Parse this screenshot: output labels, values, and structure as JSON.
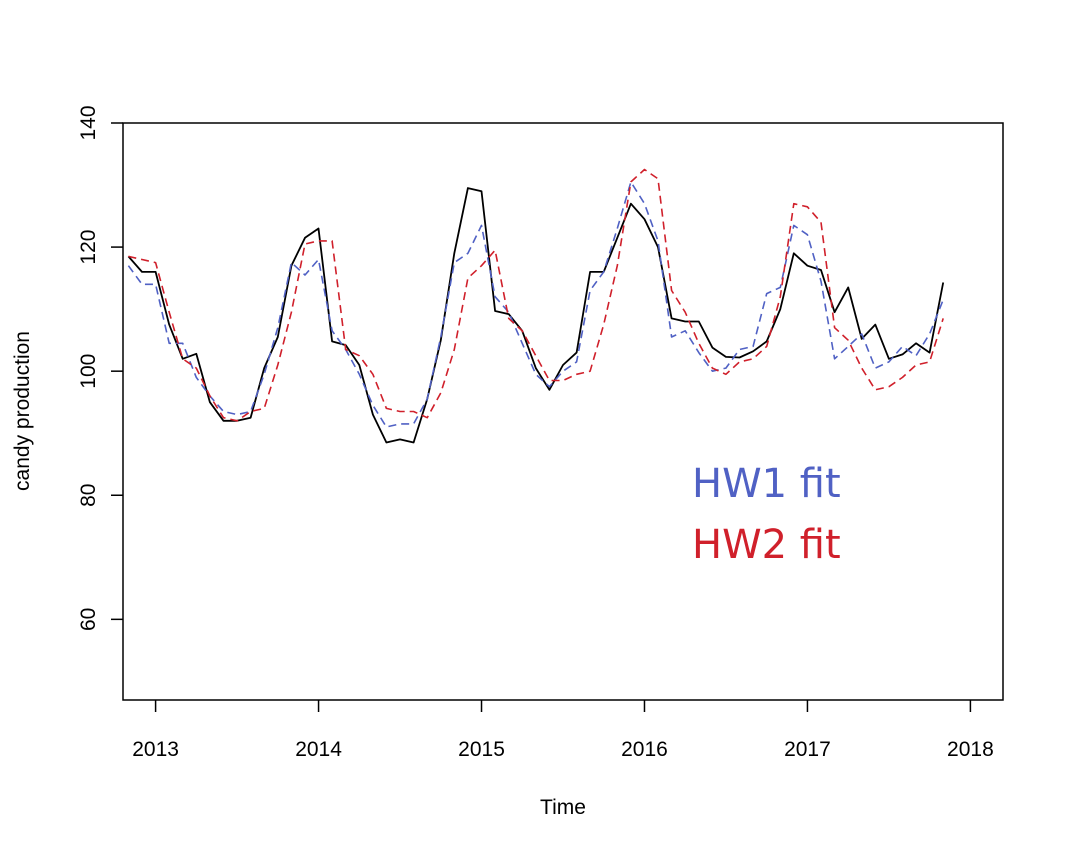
{
  "chart_data": {
    "type": "line",
    "title": "",
    "xlabel": "Time",
    "ylabel": "candy production",
    "xlim": [
      2012.8,
      2018.2
    ],
    "ylim": [
      47,
      140
    ],
    "x_ticks": [
      2013,
      2014,
      2015,
      2016,
      2017,
      2018
    ],
    "y_ticks": [
      60,
      80,
      100,
      120,
      140
    ],
    "grid": false,
    "x_start": 2012.8333,
    "x_step": 0.08333,
    "series": [
      {
        "key": "observed",
        "color": "#000000",
        "dash": "solid",
        "values": [
          118.5,
          116,
          116,
          107.5,
          102,
          102.8,
          95,
          92,
          92,
          92.5,
          100.5,
          105.5,
          117,
          121.5,
          123,
          104.8,
          104.2,
          101,
          93,
          88.5,
          89,
          88.5,
          95.5,
          105,
          119,
          129.5,
          129,
          109.7,
          109.2,
          106.5,
          100.5,
          97,
          101,
          103,
          116,
          116,
          121.5,
          127,
          124.5,
          120,
          108.5,
          108,
          108,
          103.8,
          102.3,
          102.2,
          103.2,
          104.8,
          110,
          119,
          117,
          116.3,
          109.5,
          113.5,
          105.2,
          107.5,
          102,
          102.7,
          104.5,
          103,
          114.3
        ]
      },
      {
        "key": "hw1",
        "name": "HW1 fit",
        "color": "#5061c4",
        "dash": "dashed",
        "values": [
          117,
          114,
          114,
          104.5,
          104.5,
          99,
          96,
          93.5,
          93,
          93.5,
          99.5,
          107,
          117.5,
          115.5,
          118,
          106.5,
          103.5,
          99.5,
          94.5,
          91,
          91.5,
          91.5,
          95.5,
          105.5,
          117.5,
          119,
          123.5,
          112,
          109.5,
          104.5,
          99.5,
          97.5,
          100,
          101.5,
          113,
          116,
          123,
          130.5,
          127,
          121,
          105.5,
          106.5,
          103,
          100,
          100.5,
          103.5,
          104,
          112.5,
          113.5,
          123.5,
          122,
          114.5,
          102,
          104,
          106,
          100.5,
          101.5,
          104,
          102.5,
          106,
          111.5
        ]
      },
      {
        "key": "hw2",
        "name": "HW2 fit",
        "color": "#d0202b",
        "dash": "dashed",
        "values": [
          118.5,
          118,
          117.5,
          109.5,
          102,
          100.5,
          96,
          92.5,
          92,
          93.5,
          94,
          101,
          109.5,
          120.5,
          121,
          121,
          103.5,
          102.5,
          99.5,
          94,
          93.5,
          93.5,
          92.5,
          96.5,
          103.5,
          115,
          117,
          119.5,
          108.5,
          106.5,
          102.5,
          98.5,
          98.5,
          99.5,
          100,
          107.5,
          117,
          130.5,
          132.5,
          131,
          113,
          109.5,
          104.5,
          100.5,
          99.5,
          101.5,
          102,
          104,
          112,
          127,
          126.5,
          124,
          107,
          105,
          100.5,
          97,
          97.5,
          99,
          101,
          101.5,
          108.5
        ]
      }
    ]
  }
}
